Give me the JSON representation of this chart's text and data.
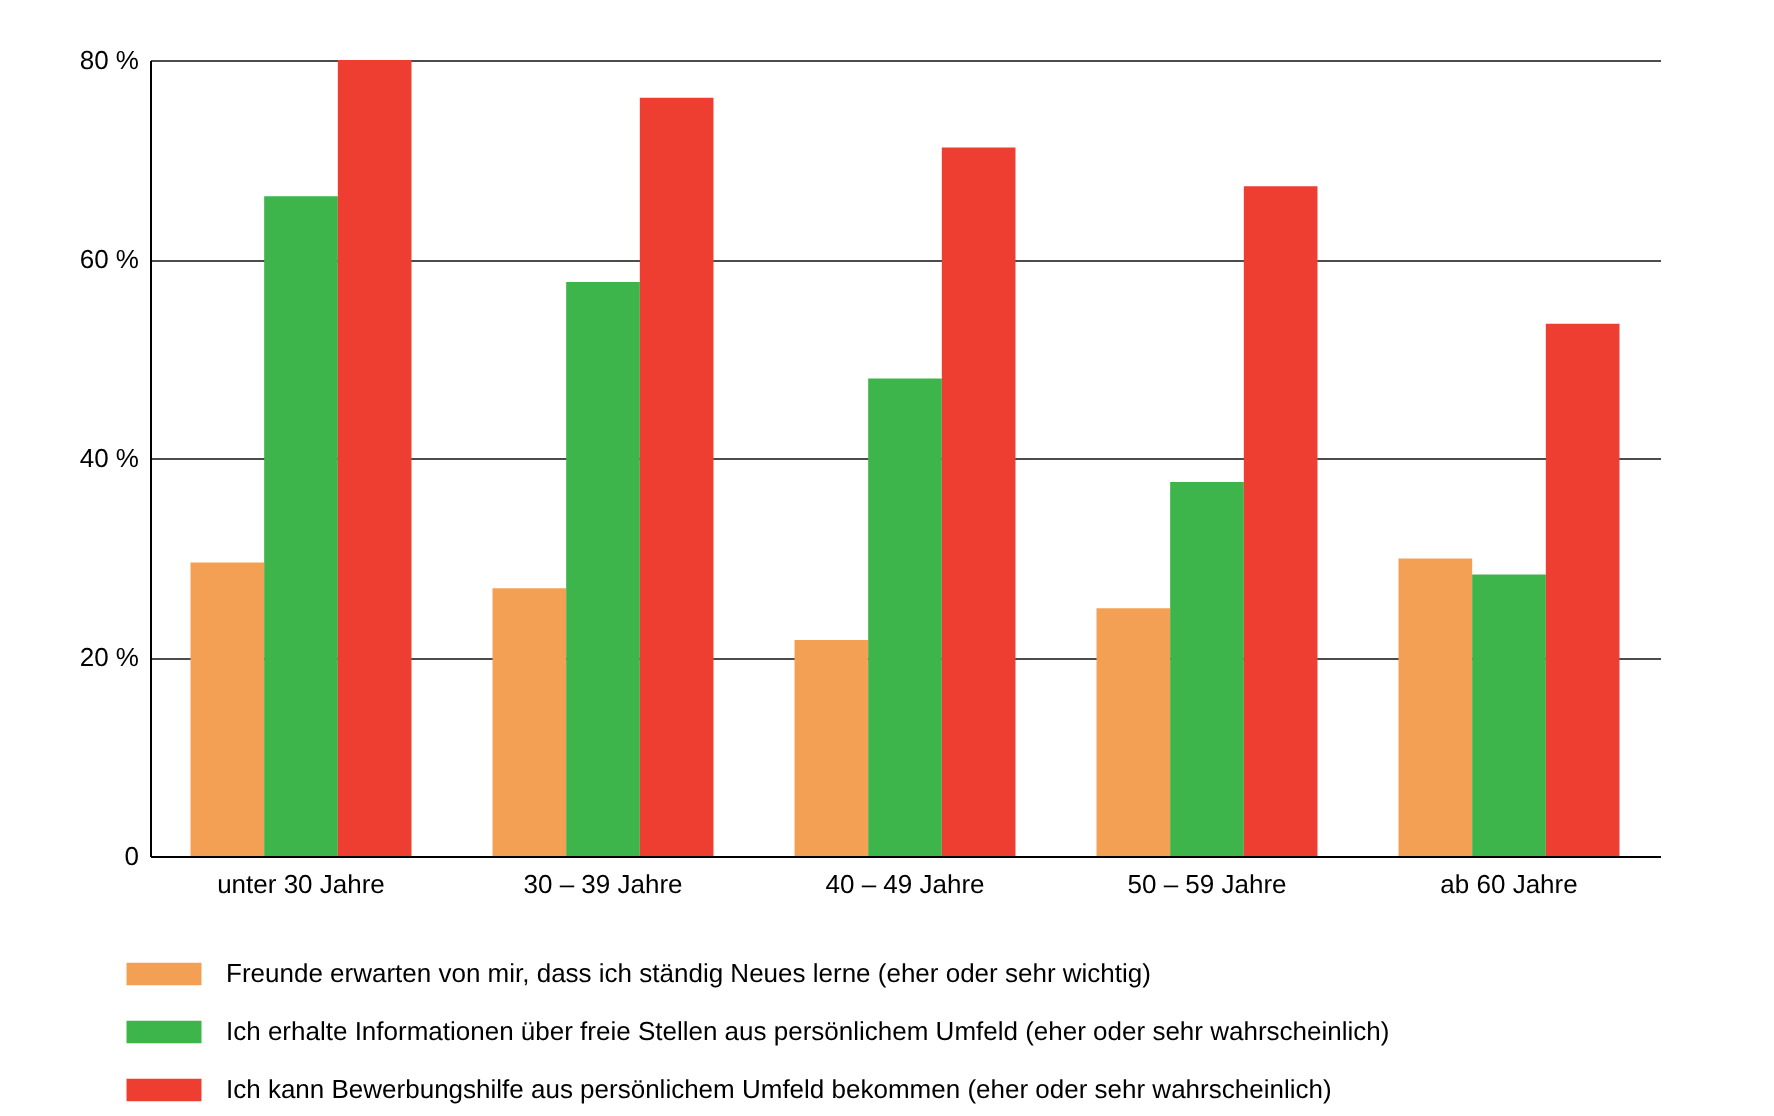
{
  "chart_data": {
    "type": "bar",
    "categories": [
      "unter 30 Jahre",
      "30 – 39 Jahre",
      "40 – 49 Jahre",
      "50 – 59 Jahre",
      "ab 60 Jahre"
    ],
    "series": [
      {
        "name": "Freunde erwarten von mir, dass ich ständig Neues lerne (eher oder sehr wichtig)",
        "color": "#f4a054",
        "values": [
          29.5,
          26.9,
          21.7,
          24.9,
          29.9
        ]
      },
      {
        "name": "Ich erhalte Informationen über freie Stellen aus persönlichem Umfeld (eher oder sehr wahrscheinlich)",
        "color": "#3db54a",
        "values": [
          66.3,
          57.7,
          48.0,
          37.6,
          28.3
        ]
      },
      {
        "name": "Ich kann Bewerbungshilfe aus persönlichem Umfeld bekommen (eher oder sehr wahrscheinlich)",
        "color": "#ee3e32",
        "values": [
          80,
          76.2,
          71.2,
          67.3,
          53.5
        ]
      }
    ],
    "ylim": [
      0,
      80
    ],
    "yticks": [
      0,
      {
        "value": 20,
        "label": "20 %"
      },
      {
        "value": 40,
        "label": "40 %"
      },
      {
        "value": 60,
        "label": "60 %"
      },
      {
        "value": 80,
        "label": "80 %"
      }
    ],
    "grid": "y",
    "legend": "bottom"
  }
}
